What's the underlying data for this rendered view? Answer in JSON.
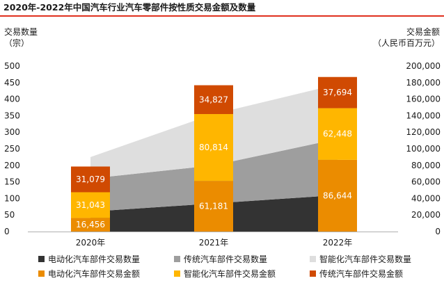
{
  "header": {
    "title": "2020年-2022年中国汽车行业汽车零部件按性质交易金额及数量"
  },
  "chart_data": {
    "type": "bar",
    "title": "2020年-2022年中国汽车行业汽车零部件按性质交易金额及数量",
    "categories": [
      "2020年",
      "2021年",
      "2022年"
    ],
    "left_axis": {
      "label_line1": "交易数量",
      "label_line2": "（宗）",
      "range": [
        0,
        500
      ],
      "ticks": [
        "0",
        "50",
        "100",
        "150",
        "200",
        "250",
        "300",
        "350",
        "400",
        "450",
        "500"
      ]
    },
    "right_axis": {
      "label_line1": "交易金额",
      "label_line2": "（人民币百万元）",
      "range": [
        0,
        200000
      ],
      "ticks": [
        "0",
        "20,000",
        "40,000",
        "60,000",
        "80,000",
        "100,000",
        "120,000",
        "140,000",
        "160,000",
        "180,000",
        "200,000"
      ]
    },
    "area_series": [
      {
        "name": "电动化汽车部件交易数量",
        "color": "#333333",
        "values": [
          60,
          85,
          110
        ]
      },
      {
        "name": "传统汽车部件交易数量",
        "color": "#9e9e9e",
        "values": [
          100,
          115,
          170
        ]
      },
      {
        "name": "智能化汽车部件交易数量",
        "color": "#dedede",
        "values": [
          65,
          155,
          165
        ]
      }
    ],
    "bar_series": [
      {
        "name": "电动化汽车部件交易金额",
        "color": "#eb8c00",
        "values": [
          16456,
          61181,
          86644
        ],
        "labels": [
          "16,456",
          "61,181",
          "86,644"
        ]
      },
      {
        "name": "智能化汽车部件交易金额",
        "color": "#ffb600",
        "values": [
          31043,
          80814,
          62448
        ],
        "labels": [
          "31,043",
          "80,814",
          "62,448"
        ]
      },
      {
        "name": "传统汽车部件交易金额",
        "color": "#d04a02",
        "values": [
          31079,
          34827,
          37694
        ],
        "labels": [
          "31,079",
          "34,827",
          "37,694"
        ]
      }
    ]
  },
  "legend": {
    "items": [
      {
        "label": "电动化汽车部件交易数量",
        "color": "#333333"
      },
      {
        "label": "传统汽车部件交易数量",
        "color": "#9e9e9e"
      },
      {
        "label": "智能化汽车部件交易数量",
        "color": "#dedede"
      },
      {
        "label": "电动化汽车部件交易金额",
        "color": "#eb8c00"
      },
      {
        "label": "智能化汽车部件交易金额",
        "color": "#ffb600"
      },
      {
        "label": "传统汽车部件交易金额",
        "color": "#d04a02"
      }
    ]
  }
}
